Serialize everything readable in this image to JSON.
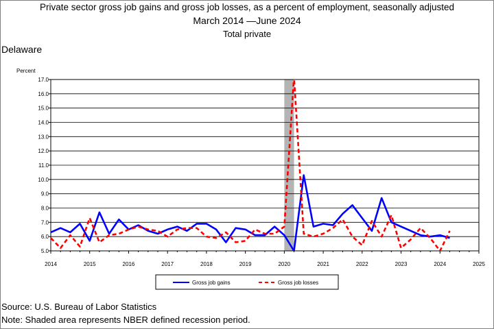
{
  "chart_data": {
    "type": "line",
    "title": "Private sector gross job gains and gross job losses, as a percent of employment, seasonally adjusted",
    "subtitle": "March 2014 —June 2024",
    "subtitle2": "Total private",
    "region": "Delaware",
    "ylabel": "Percent",
    "ylim": [
      5.0,
      17.0
    ],
    "xlim": [
      2014,
      2025
    ],
    "y_ticks": [
      "5.0",
      "6.0",
      "7.0",
      "8.0",
      "9.0",
      "10.0",
      "11.0",
      "12.0",
      "13.0",
      "14.0",
      "15.0",
      "16.0",
      "17.0"
    ],
    "x_ticks": [
      "2014",
      "2015",
      "2016",
      "2017",
      "2018",
      "2019",
      "2020",
      "2021",
      "2022",
      "2023",
      "2024",
      "2025"
    ],
    "grid": true,
    "recession": [
      2020.0,
      2020.25
    ],
    "legend_position": "bottom",
    "x": [
      2014.0,
      2014.25,
      2014.5,
      2014.75,
      2015.0,
      2015.25,
      2015.5,
      2015.75,
      2016.0,
      2016.25,
      2016.5,
      2016.75,
      2017.0,
      2017.25,
      2017.5,
      2017.75,
      2018.0,
      2018.25,
      2018.5,
      2018.75,
      2019.0,
      2019.25,
      2019.5,
      2019.75,
      2020.0,
      2020.25,
      2020.5,
      2020.75,
      2021.0,
      2021.25,
      2021.5,
      2021.75,
      2022.0,
      2022.25,
      2022.5,
      2022.75,
      2023.0,
      2023.25,
      2023.5,
      2023.75,
      2024.0,
      2024.25
    ],
    "series": [
      {
        "name": "Gross job gains",
        "color": "#0000ff",
        "style": "solid",
        "values": [
          6.3,
          6.6,
          6.3,
          6.9,
          5.7,
          7.7,
          6.2,
          7.2,
          6.5,
          6.8,
          6.4,
          6.2,
          6.5,
          6.7,
          6.4,
          6.9,
          6.9,
          6.5,
          5.6,
          6.6,
          6.5,
          6.1,
          6.1,
          6.7,
          6.1,
          5.0,
          10.3,
          6.7,
          6.9,
          6.8,
          7.6,
          8.2,
          7.3,
          6.4,
          8.7,
          7.0,
          6.7,
          6.4,
          6.1,
          6.0,
          6.1,
          5.9
        ]
      },
      {
        "name": "Gross job losses",
        "color": "#ff0000",
        "style": "dashed",
        "values": [
          5.9,
          5.2,
          6.1,
          5.3,
          7.3,
          5.6,
          6.1,
          6.2,
          6.5,
          6.7,
          6.5,
          6.4,
          6.0,
          6.5,
          6.6,
          6.6,
          6.0,
          5.9,
          6.3,
          5.6,
          5.7,
          6.5,
          6.2,
          6.2,
          6.7,
          17.2,
          6.2,
          6.0,
          6.2,
          6.6,
          7.2,
          6.0,
          5.4,
          7.1,
          6.0,
          7.5,
          5.2,
          5.8,
          6.6,
          5.9,
          5.0,
          6.4
        ]
      }
    ]
  },
  "footer": {
    "source": "Source: U.S. Bureau of Labor Statistics",
    "note": "Note: Shaded area represents NBER defined recession period."
  }
}
